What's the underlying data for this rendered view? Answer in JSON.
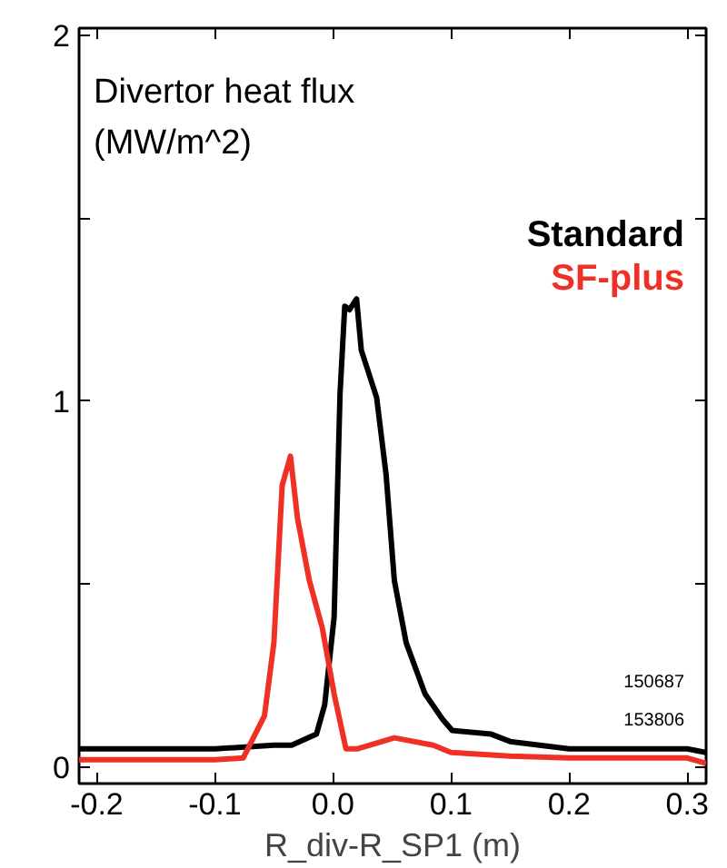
{
  "chart_data": {
    "type": "line",
    "title": "Divertor heat flux\n(MW/m^2)",
    "xlabel": "R_div-R_SP1 (m)",
    "xlim": [
      -0.215,
      0.316
    ],
    "xticks": [
      -0.2,
      -0.1,
      {
        "value": 0.0,
        "label": "0.0"
      },
      0.1,
      0.2,
      0.3
    ],
    "ylim": [
      -0.045,
      2.02
    ],
    "yticks": [
      0,
      {
        "value": 0.5,
        "label": null
      },
      1,
      {
        "value": 1.5,
        "label": null
      },
      2
    ],
    "grid": false,
    "legend": "top right",
    "line_style": "solid",
    "marker": "none",
    "annotations": [
      "150687",
      "153806"
    ],
    "series": [
      {
        "name": "Standard",
        "color": "#000000",
        "x": [
          -0.215,
          -0.15,
          -0.1,
          -0.05,
          -0.035,
          -0.014,
          -0.007,
          0.001,
          0.006,
          0.01,
          0.014,
          0.02,
          0.024,
          0.029,
          0.037,
          0.045,
          0.052,
          0.062,
          0.078,
          0.093,
          0.101,
          0.134,
          0.15,
          0.2,
          0.25,
          0.3,
          0.316
        ],
        "values": [
          0.05,
          0.05,
          0.05,
          0.06,
          0.06,
          0.09,
          0.17,
          0.41,
          1.02,
          1.26,
          1.25,
          1.28,
          1.14,
          1.09,
          1.01,
          0.8,
          0.51,
          0.34,
          0.2,
          0.13,
          0.1,
          0.09,
          0.07,
          0.05,
          0.05,
          0.05,
          0.04
        ]
      },
      {
        "name": "SF-plus",
        "color": "#ee3124",
        "x": [
          -0.215,
          -0.15,
          -0.1,
          -0.076,
          -0.058,
          -0.05,
          -0.043,
          -0.036,
          -0.03,
          -0.02,
          -0.009,
          0.001,
          0.011,
          0.021,
          0.052,
          0.085,
          0.1,
          0.15,
          0.2,
          0.25,
          0.3,
          0.316
        ],
        "values": [
          0.02,
          0.02,
          0.02,
          0.025,
          0.14,
          0.34,
          0.77,
          0.85,
          0.68,
          0.51,
          0.38,
          0.2,
          0.05,
          0.05,
          0.08,
          0.06,
          0.04,
          0.03,
          0.025,
          0.025,
          0.025,
          0.01
        ]
      }
    ]
  }
}
